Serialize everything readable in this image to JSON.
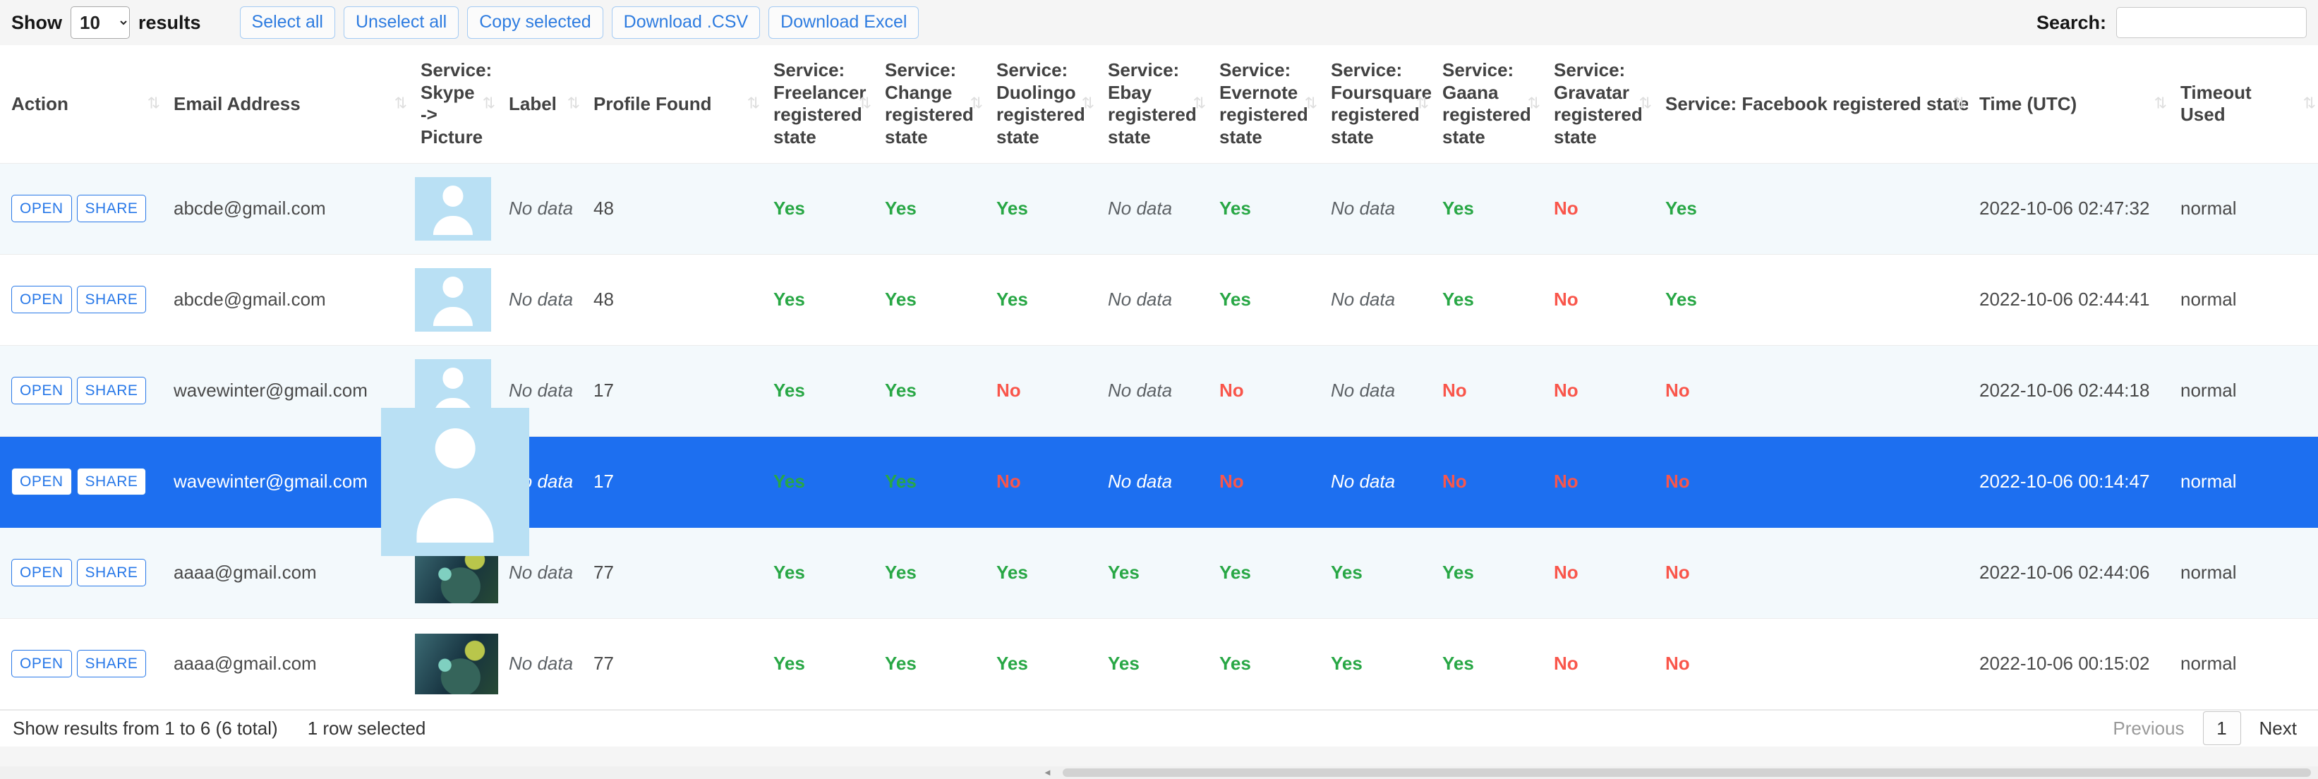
{
  "toolbar": {
    "show_label": "Show",
    "page_size": "10",
    "results_label": "results",
    "buttons": [
      "Select all",
      "Unselect all",
      "Copy selected",
      "Download .CSV",
      "Download Excel"
    ],
    "search_label": "Search:",
    "search_value": ""
  },
  "icons": {
    "sort": "⇅",
    "scrollbar_left": "◄"
  },
  "table": {
    "columns": [
      "Action",
      "Email Address",
      "Service: Skype -> Picture",
      "Label",
      "Profile Found",
      "Service: Freelancer registered state",
      "Service: Change registered state",
      "Service: Duolingo registered state",
      "Service: Ebay registered state",
      "Service: Evernote registered state",
      "Service: Foursquare registered state",
      "Service: Gaana registered state",
      "Service: Gravatar registered state",
      "Service: Facebook registered state",
      "Time (UTC)",
      "Timeout Used"
    ],
    "action_buttons": [
      "OPEN",
      "SHARE"
    ],
    "rows": [
      {
        "email": "abcde@gmail.com",
        "picture": "avatar",
        "label": "No data",
        "profile_found": "48",
        "freelancer": "Yes",
        "change": "Yes",
        "duolingo": "Yes",
        "ebay": "No data",
        "evernote": "Yes",
        "foursquare": "No data",
        "gaana": "Yes",
        "gravatar": "No",
        "facebook": "Yes",
        "time": "2022-10-06 02:47:32",
        "timeout": "normal",
        "selected": false
      },
      {
        "email": "abcde@gmail.com",
        "picture": "avatar",
        "label": "No data",
        "profile_found": "48",
        "freelancer": "Yes",
        "change": "Yes",
        "duolingo": "Yes",
        "ebay": "No data",
        "evernote": "Yes",
        "foursquare": "No data",
        "gaana": "Yes",
        "gravatar": "No",
        "facebook": "Yes",
        "time": "2022-10-06 02:44:41",
        "timeout": "normal",
        "selected": false
      },
      {
        "email": "wavewinter@gmail.com",
        "picture": "avatar",
        "label": "No data",
        "profile_found": "17",
        "freelancer": "Yes",
        "change": "Yes",
        "duolingo": "No",
        "ebay": "No data",
        "evernote": "No",
        "foursquare": "No data",
        "gaana": "No",
        "gravatar": "No",
        "facebook": "No",
        "time": "2022-10-06 02:44:18",
        "timeout": "normal",
        "selected": false
      },
      {
        "email": "wavewinter@gmail.com",
        "picture": "avatar-zoomed",
        "label": "No data",
        "profile_found": "17",
        "freelancer": "Yes",
        "change": "Yes",
        "duolingo": "No",
        "ebay": "No data",
        "evernote": "No",
        "foursquare": "No data",
        "gaana": "No",
        "gravatar": "No",
        "facebook": "No",
        "time": "2022-10-06 00:14:47",
        "timeout": "normal",
        "selected": true
      },
      {
        "email": "aaaa@gmail.com",
        "picture": "photo",
        "label": "No data",
        "profile_found": "77",
        "freelancer": "Yes",
        "change": "Yes",
        "duolingo": "Yes",
        "ebay": "Yes",
        "evernote": "Yes",
        "foursquare": "Yes",
        "gaana": "Yes",
        "gravatar": "No",
        "facebook": "No",
        "time": "2022-10-06 02:44:06",
        "timeout": "normal",
        "selected": false
      },
      {
        "email": "aaaa@gmail.com",
        "picture": "photo",
        "label": "No data",
        "profile_found": "77",
        "freelancer": "Yes",
        "change": "Yes",
        "duolingo": "Yes",
        "ebay": "Yes",
        "evernote": "Yes",
        "foursquare": "Yes",
        "gaana": "Yes",
        "gravatar": "No",
        "facebook": "No",
        "time": "2022-10-06 00:15:02",
        "timeout": "normal",
        "selected": false
      }
    ]
  },
  "footer": {
    "summary": "Show results from 1 to 6 (6 total)",
    "selection": "1 row selected",
    "pagination": {
      "previous": "Previous",
      "current": "1",
      "next": "Next"
    }
  },
  "colors": {
    "selected_row": "#1d6ff0",
    "yes_green": "#28a745",
    "no_red": "#f9564b",
    "accent_blue": "#2e7ce0",
    "avatar_bg": "#b9e0f4",
    "stripe": "#f3f9fc"
  }
}
